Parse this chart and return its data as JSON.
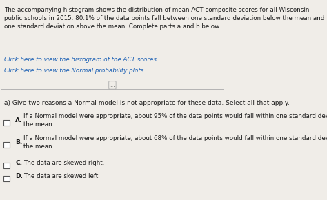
{
  "bg_color": "#f0ede8",
  "text_color": "#1a1a1a",
  "link_color": "#1a5fb4",
  "paragraph": "The accompanying histogram shows the distribution of mean ACT composite scores for all Wisconsin public schools in 2015. 80.1% of the data points fall between one standard deviation below the mean and one standard deviation above the mean. Complete parts a and b below.",
  "link1": "Click here to view the histogram of the ACT scores.",
  "link2": "Click here to view the Normal probability plots.",
  "divider_text": "...",
  "question": "a) Give two reasons a Normal model is not appropriate for these data. Select all that apply.",
  "options": [
    {
      "label": "A.",
      "text": "If a Normal model were appropriate, about 95% of the data points would fall within one standard deviation of\nthe mean."
    },
    {
      "label": "B.",
      "text": "If a Normal model were appropriate, about 68% of the data points would fall within one standard deviation of\nthe mean."
    },
    {
      "label": "C.",
      "text": "The data are skewed right."
    },
    {
      "label": "D.",
      "text": "The data are skewed left."
    }
  ]
}
